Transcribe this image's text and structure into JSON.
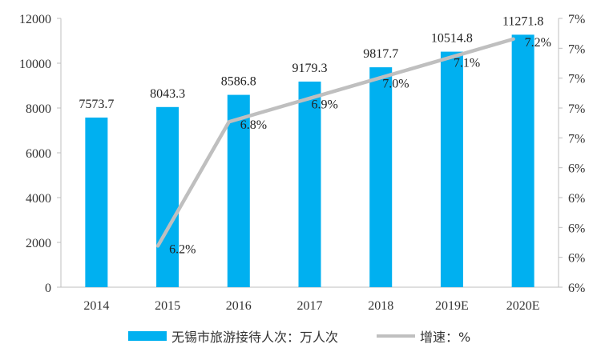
{
  "chart_data": {
    "type": "bar+line",
    "categories": [
      "2014",
      "2015",
      "2016",
      "2017",
      "2018",
      "2019E",
      "2020E"
    ],
    "series": [
      {
        "name": "无锡市旅游接待人次：万人次",
        "type": "bar",
        "axis": "left",
        "values": [
          7573.7,
          8043.3,
          8586.8,
          9179.3,
          9817.7,
          10514.8,
          11271.8
        ],
        "labels": [
          "7573.7",
          "8043.3",
          "8586.8",
          "9179.3",
          "9817.7",
          "10514.8",
          "11271.8"
        ],
        "color": "#00B0F0"
      },
      {
        "name": "增速：%",
        "type": "line",
        "axis": "right",
        "values": [
          null,
          6.2,
          6.8,
          6.9,
          7.0,
          7.1,
          7.2
        ],
        "labels": [
          "",
          "6.2%",
          "6.8%",
          "6.9%",
          "7.0%",
          "7.1%",
          "7.2%"
        ],
        "color": "#BFBFBF"
      }
    ],
    "left_axis": {
      "ylim": [
        0,
        12000
      ],
      "ticks": [
        "0",
        "2000",
        "4000",
        "6000",
        "8000",
        "10000",
        "12000"
      ]
    },
    "right_axis": {
      "ylim": [
        6.0,
        7.3
      ],
      "ticks": [
        "6%",
        "6%",
        "6%",
        "6%",
        "6%",
        "7%",
        "7%",
        "7%",
        "7%",
        "7%"
      ]
    },
    "grid": false,
    "legend_position": "bottom"
  }
}
